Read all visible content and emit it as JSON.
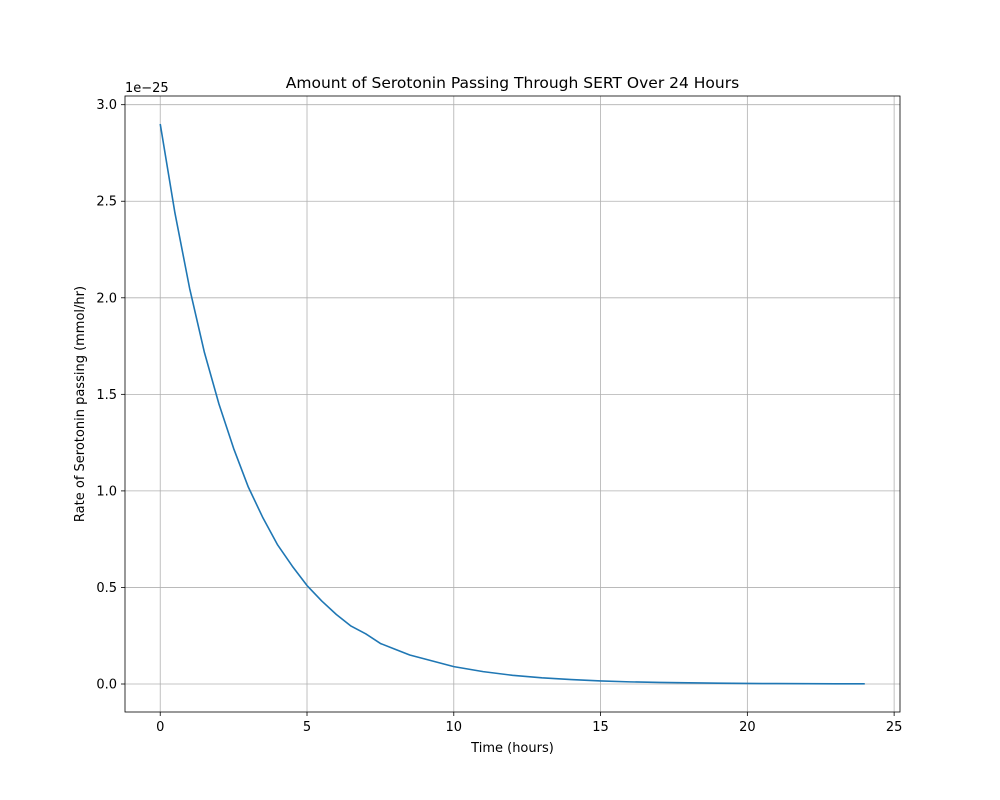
{
  "chart_data": {
    "type": "line",
    "title": "Amount of Serotonin Passing Through SERT Over 24 Hours",
    "xlabel": "Time (hours)",
    "ylabel": "Rate of Serotonin passing (mmol/hr)",
    "y_offset_text": "1e−25",
    "xlim": [
      -1.2,
      25.2
    ],
    "ylim": [
      -0.145,
      3.045
    ],
    "x_ticks": [
      0,
      5,
      10,
      15,
      20,
      25
    ],
    "x_tick_labels": [
      "0",
      "5",
      "10",
      "15",
      "20",
      "25"
    ],
    "y_ticks": [
      0.0,
      0.5,
      1.0,
      1.5,
      2.0,
      2.5,
      3.0
    ],
    "y_tick_labels": [
      "0.0",
      "0.5",
      "1.0",
      "1.5",
      "2.0",
      "2.5",
      "3.0"
    ],
    "grid": true,
    "color": "#1f77b4",
    "series": [
      {
        "x": [
          0,
          0.5,
          1,
          1.5,
          2,
          2.5,
          3,
          3.5,
          4,
          4.5,
          5,
          5.5,
          6,
          6.5,
          7,
          7.5,
          8,
          8.5,
          9,
          9.5,
          10,
          11,
          12,
          13,
          14,
          15,
          16,
          17,
          18,
          19,
          20,
          21,
          22,
          23,
          24
        ],
        "y": [
          2.9,
          2.44,
          2.05,
          1.72,
          1.45,
          1.22,
          1.02,
          0.86,
          0.72,
          0.61,
          0.51,
          0.43,
          0.36,
          0.3,
          0.26,
          0.21,
          0.18,
          0.15,
          0.13,
          0.11,
          0.09,
          0.064,
          0.045,
          0.032,
          0.023,
          0.016,
          0.011,
          0.008,
          0.006,
          0.004,
          0.003,
          0.002,
          0.0014,
          0.001,
          0.0007
        ]
      }
    ]
  }
}
